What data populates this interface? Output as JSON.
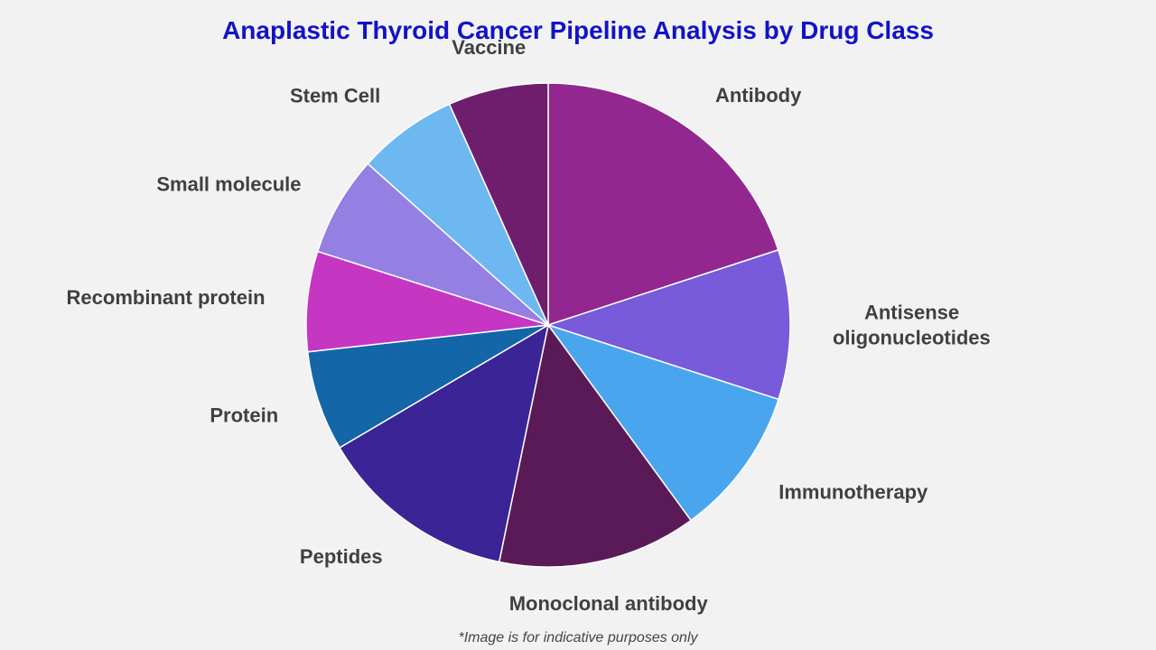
{
  "chart_data": {
    "type": "pie",
    "title": "Anaplastic Thyroid Cancer Pipeline Analysis by Drug Class",
    "categories": [
      "Antibody",
      "Antisense oligonucleotides",
      "Immunotherapy",
      "Monoclonal antibody",
      "Peptides",
      "Protein",
      "Recombinant protein",
      "Small molecule",
      "Stem Cell",
      "Vaccine"
    ],
    "values": [
      20,
      10,
      10,
      13.3,
      13.3,
      6.7,
      6.7,
      6.7,
      6.7,
      6.7
    ],
    "colors": [
      "#92278f",
      "#775bda",
      "#49a6ee",
      "#5a1a57",
      "#3a2496",
      "#1366a8",
      "#c536c3",
      "#947fe3",
      "#6eb8f2",
      "#6f1e6d"
    ],
    "start_angle_deg": 0,
    "direction": "clockwise",
    "legend": "none"
  },
  "footnote": "*Image is for indicative purposes only"
}
